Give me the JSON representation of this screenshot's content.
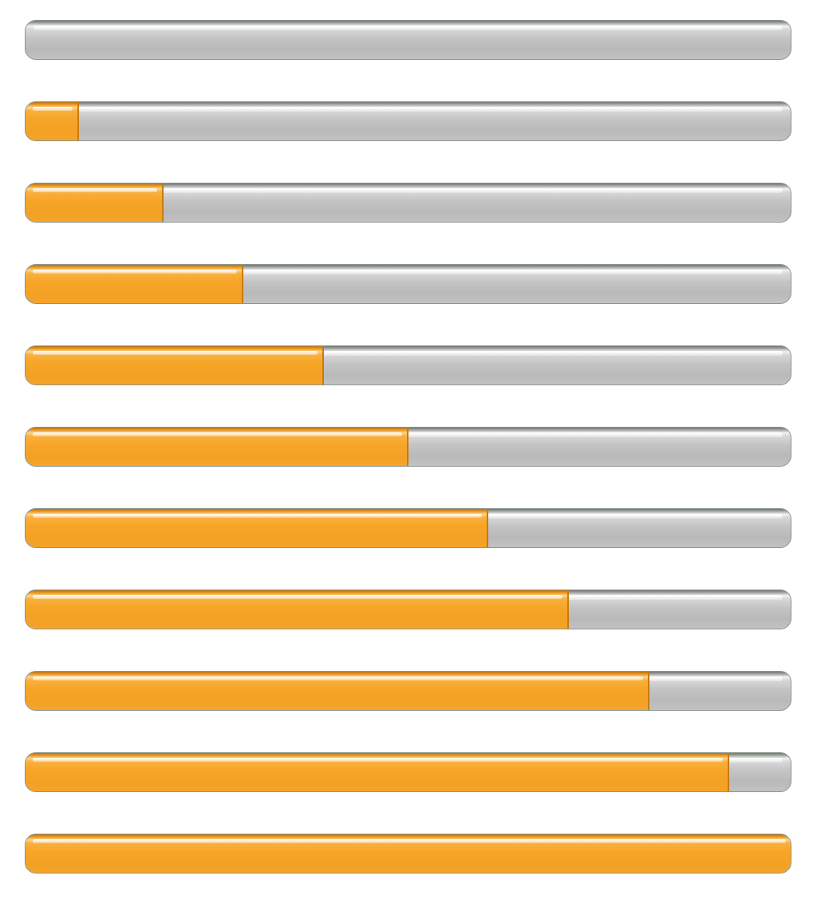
{
  "colors": {
    "fill": "#f6a527",
    "track": "#c4c4c4",
    "background": "#ffffff"
  },
  "progress_bars": [
    {
      "value": 0
    },
    {
      "value": 0.07
    },
    {
      "value": 0.18
    },
    {
      "value": 0.285
    },
    {
      "value": 0.39
    },
    {
      "value": 0.5
    },
    {
      "value": 0.605
    },
    {
      "value": 0.71
    },
    {
      "value": 0.815
    },
    {
      "value": 0.92
    },
    {
      "value": 1.0
    }
  ]
}
